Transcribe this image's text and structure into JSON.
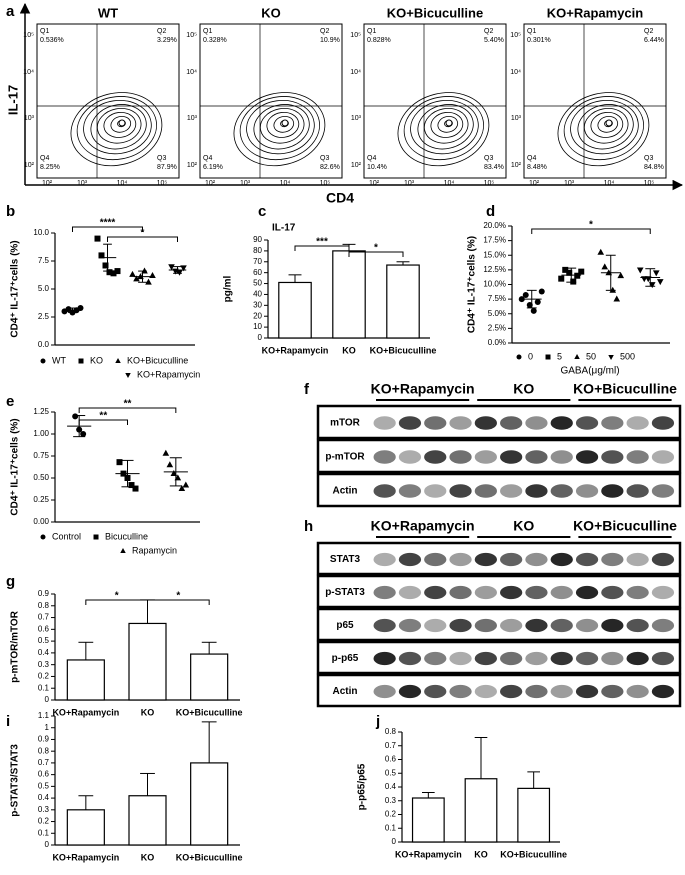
{
  "panel_labels": [
    "a",
    "b",
    "c",
    "d",
    "e",
    "f",
    "g",
    "h",
    "i",
    "j"
  ],
  "flow": {
    "y_label": "IL-17",
    "x_label": "CD4",
    "ticks": [
      "10²",
      "10³",
      "10⁴",
      "10⁵"
    ],
    "plots": [
      {
        "title": "WT",
        "quadrants": [
          {
            "name": "Q1",
            "value": "0.536%"
          },
          {
            "name": "Q2",
            "value": "3.29%"
          },
          {
            "name": "Q4",
            "value": "8.25%"
          },
          {
            "name": "Q3",
            "value": "87.9%"
          }
        ]
      },
      {
        "title": "KO",
        "quadrants": [
          {
            "name": "Q1",
            "value": "0.328%"
          },
          {
            "name": "Q2",
            "value": "10.9%"
          },
          {
            "name": "Q4",
            "value": "6.19%"
          },
          {
            "name": "Q3",
            "value": "82.6%"
          }
        ]
      },
      {
        "title": "KO+Bicuculline",
        "quadrants": [
          {
            "name": "Q1",
            "value": "0.828%"
          },
          {
            "name": "Q2",
            "value": "5.40%"
          },
          {
            "name": "Q4",
            "value": "10.4%"
          },
          {
            "name": "Q3",
            "value": "83.4%"
          }
        ]
      },
      {
        "title": "KO+Rapamycin",
        "quadrants": [
          {
            "name": "Q1",
            "value": "0.301%"
          },
          {
            "name": "Q2",
            "value": "6.44%"
          },
          {
            "name": "Q4",
            "value": "8.48%"
          },
          {
            "name": "Q3",
            "value": "84.8%"
          }
        ]
      }
    ]
  },
  "blots": {
    "f": {
      "groups": [
        "KO+Rapamycin",
        "KO",
        "KO+Bicuculline"
      ],
      "rows": [
        "mTOR",
        "p-mTOR",
        "Actin"
      ]
    },
    "h": {
      "groups": [
        "KO+Rapamycin",
        "KO",
        "KO+Bicuculline"
      ],
      "rows": [
        "STAT3",
        "p-STAT3",
        "p65",
        "p-p65",
        "Actin"
      ]
    }
  },
  "chart_data": [
    {
      "type": "dot",
      "y_label": "CD4⁺ IL-17⁺cells (%)",
      "ylim": [
        0,
        10
      ],
      "yticks": [
        {
          "value": 0,
          "label": "0.0"
        },
        2.5,
        {
          "value": 5,
          "label": "5.0"
        },
        7.5,
        {
          "value": 10,
          "label": "10.0"
        }
      ],
      "annotations": [
        "****",
        "*"
      ],
      "series": [
        {
          "name": "WT",
          "marker": "circle",
          "values": [
            3.0,
            3.2,
            2.9,
            3.1,
            3.3
          ],
          "mean": 3.1,
          "error": 0.2
        },
        {
          "name": "KO",
          "marker": "square",
          "values": [
            9.5,
            8.0,
            7.1,
            6.5,
            6.4,
            6.6
          ],
          "mean": 7.8,
          "error": 1.2
        },
        {
          "name": "KO+Bicuculline",
          "marker": "triangle",
          "values": [
            6.3,
            5.9,
            6.1,
            6.6,
            5.6,
            6.2
          ],
          "mean": 6.1,
          "error": 0.5
        },
        {
          "name": "KO+Rapamycin",
          "marker": "triangle-down",
          "values": [
            7.0,
            6.6,
            6.5,
            6.9
          ],
          "mean": 6.7,
          "error": 0.3
        }
      ]
    },
    {
      "type": "bar",
      "subtitle": "IL-17",
      "y_label": "pg/ml",
      "ylim": [
        0,
        90
      ],
      "yticks": [
        0,
        10,
        20,
        30,
        40,
        50,
        60,
        70,
        80,
        90
      ],
      "annotations": [
        "***",
        "*"
      ],
      "categories": [
        "KO+Rapamycin",
        "KO",
        "KO+Bicuculline"
      ],
      "values": [
        51,
        80,
        67
      ],
      "errors": [
        7,
        6,
        3
      ]
    },
    {
      "type": "dot",
      "y_label": "CD4⁺ IL-17⁺cells (%)",
      "x_label": "GABA(μg/ml)",
      "ylim": [
        0,
        20
      ],
      "yticks": [
        {
          "value": 0,
          "label": "0.0%"
        },
        {
          "value": 2.5,
          "label": "2.5%"
        },
        {
          "value": 5,
          "label": "5.0%"
        },
        {
          "value": 7.5,
          "label": "7.5%"
        },
        {
          "value": 10,
          "label": "10.0%"
        },
        {
          "value": 12.5,
          "label": "12.5%"
        },
        {
          "value": 15,
          "label": "15.0%"
        },
        {
          "value": 17.5,
          "label": "17.5%"
        },
        {
          "value": 20,
          "label": "20.0%"
        }
      ],
      "annotations": [
        "*"
      ],
      "series": [
        {
          "name": "0",
          "marker": "circle",
          "values": [
            7.5,
            8.2,
            6.5,
            5.5,
            7.0,
            8.8
          ],
          "mean": 7.5,
          "error": 1.5
        },
        {
          "name": "5",
          "marker": "square",
          "values": [
            11,
            12.5,
            12,
            10.5,
            11.5,
            12.2
          ],
          "mean": 11.6,
          "error": 1.2
        },
        {
          "name": "50",
          "marker": "triangle",
          "values": [
            15.5,
            13,
            12,
            9,
            7.5,
            11.5
          ],
          "mean": 12,
          "error": 3
        },
        {
          "name": "500",
          "marker": "triangle-down",
          "values": [
            12.5,
            11,
            11,
            10,
            12,
            10.5
          ],
          "mean": 11.2,
          "error": 1.5
        }
      ]
    },
    {
      "type": "dot",
      "y_label": "CD4⁺ IL-17⁺cells (%)",
      "ylim": [
        0,
        1.25
      ],
      "yticks": [
        {
          "value": 0,
          "label": "0.00"
        },
        0.25,
        {
          "value": 0.5,
          "label": "0.50"
        },
        0.75,
        {
          "value": 1,
          "label": "1.00"
        },
        1.25
      ],
      "annotations": [
        "**",
        "**"
      ],
      "series": [
        {
          "name": "Control",
          "marker": "circle",
          "values": [
            1.2,
            1.05,
            1.0
          ],
          "mean": 1.09,
          "error": 0.12
        },
        {
          "name": "Bicuculline",
          "marker": "square",
          "values": [
            0.68,
            0.55,
            0.5,
            0.42,
            0.38
          ],
          "mean": 0.55,
          "error": 0.15
        },
        {
          "name": "Rapamycin",
          "marker": "triangle",
          "values": [
            0.78,
            0.65,
            0.55,
            0.5,
            0.38,
            0.42
          ],
          "mean": 0.57,
          "error": 0.16
        }
      ]
    },
    {
      "type": "bar",
      "y_label": "p-mTOR/mTOR",
      "ylim": [
        0,
        0.9
      ],
      "yticks": [
        0,
        0.1,
        0.2,
        0.3,
        0.4,
        0.5,
        0.6,
        0.7,
        0.8,
        0.9
      ],
      "annotations": [
        "*",
        "*"
      ],
      "categories": [
        "KO+Rapamycin",
        "KO",
        "KO+Bicuculline"
      ],
      "values": [
        0.34,
        0.65,
        0.39
      ],
      "errors": [
        0.15,
        0.2,
        0.1
      ]
    },
    {
      "type": "bar",
      "y_label": "p-STAT3/STAT3",
      "ylim": [
        0,
        1.1
      ],
      "yticks": [
        0,
        0.1,
        0.2,
        0.3,
        0.4,
        0.5,
        0.6,
        0.7,
        0.8,
        0.9,
        1,
        1.1
      ],
      "categories": [
        "KO+Rapamycin",
        "KO",
        "KO+Bicuculline"
      ],
      "values": [
        0.3,
        0.42,
        0.7
      ],
      "errors": [
        0.12,
        0.19,
        0.35
      ]
    },
    {
      "type": "bar",
      "y_label": "p-p65/p65",
      "ylim": [
        0,
        0.8
      ],
      "yticks": [
        0,
        0.1,
        0.2,
        0.3,
        0.4,
        0.5,
        0.6,
        0.7,
        0.8
      ],
      "categories": [
        "KO+Rapamycin",
        "KO",
        "KO+Bicuculline"
      ],
      "values": [
        0.32,
        0.46,
        0.39
      ],
      "errors": [
        0.04,
        0.3,
        0.12
      ]
    }
  ]
}
